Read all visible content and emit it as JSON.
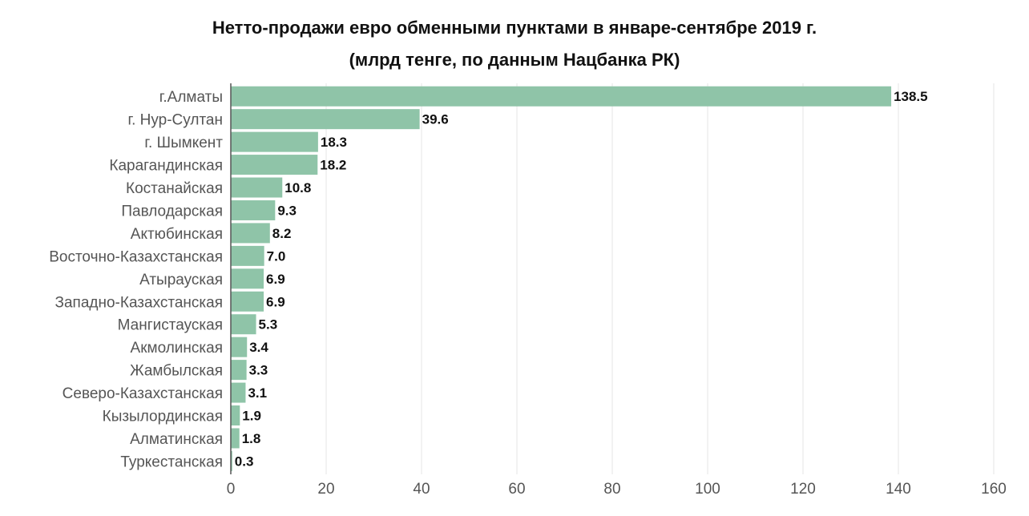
{
  "chart_data": {
    "type": "bar",
    "orientation": "horizontal",
    "title": "Нетто-продажи евро обменными пунктами в январе-сентябре 2019 г.",
    "subtitle": "(млрд тенге, по данным Нацбанка РК)",
    "categories": [
      "г.Алматы",
      "г. Нур-Султан",
      "г. Шымкент",
      "Карагандинская",
      "Костанайская",
      "Павлодарская",
      "Актюбинская",
      "Восточно-Казахстанская",
      "Атырауская",
      "Западно-Казахстанская",
      "Мангистауская",
      "Акмолинская",
      "Жамбылская",
      "Северо-Казахстанская",
      "Кызылординская",
      "Алматинская",
      "Туркестанская"
    ],
    "values": [
      138.5,
      39.6,
      18.3,
      18.2,
      10.8,
      9.3,
      8.2,
      7.0,
      6.9,
      6.9,
      5.3,
      3.4,
      3.3,
      3.1,
      1.9,
      1.8,
      0.3
    ],
    "value_labels": [
      "138.5",
      "39.6",
      "18.3",
      "18.2",
      "10.8",
      "9.3",
      "8.2",
      "7.0",
      "6.9",
      "6.9",
      "5.3",
      "3.4",
      "3.3",
      "3.1",
      "1.9",
      "1.8",
      "0.3"
    ],
    "xlim": [
      0,
      160
    ],
    "xticks": [
      0,
      20,
      40,
      60,
      80,
      100,
      120,
      140,
      160
    ],
    "xtick_labels": [
      "0",
      "20",
      "40",
      "60",
      "80",
      "100",
      "120",
      "140",
      "160"
    ],
    "grid": true,
    "bar_color": "#8fc4a8",
    "grid_color": "#e6e6e6",
    "axis_color": "#555555"
  }
}
